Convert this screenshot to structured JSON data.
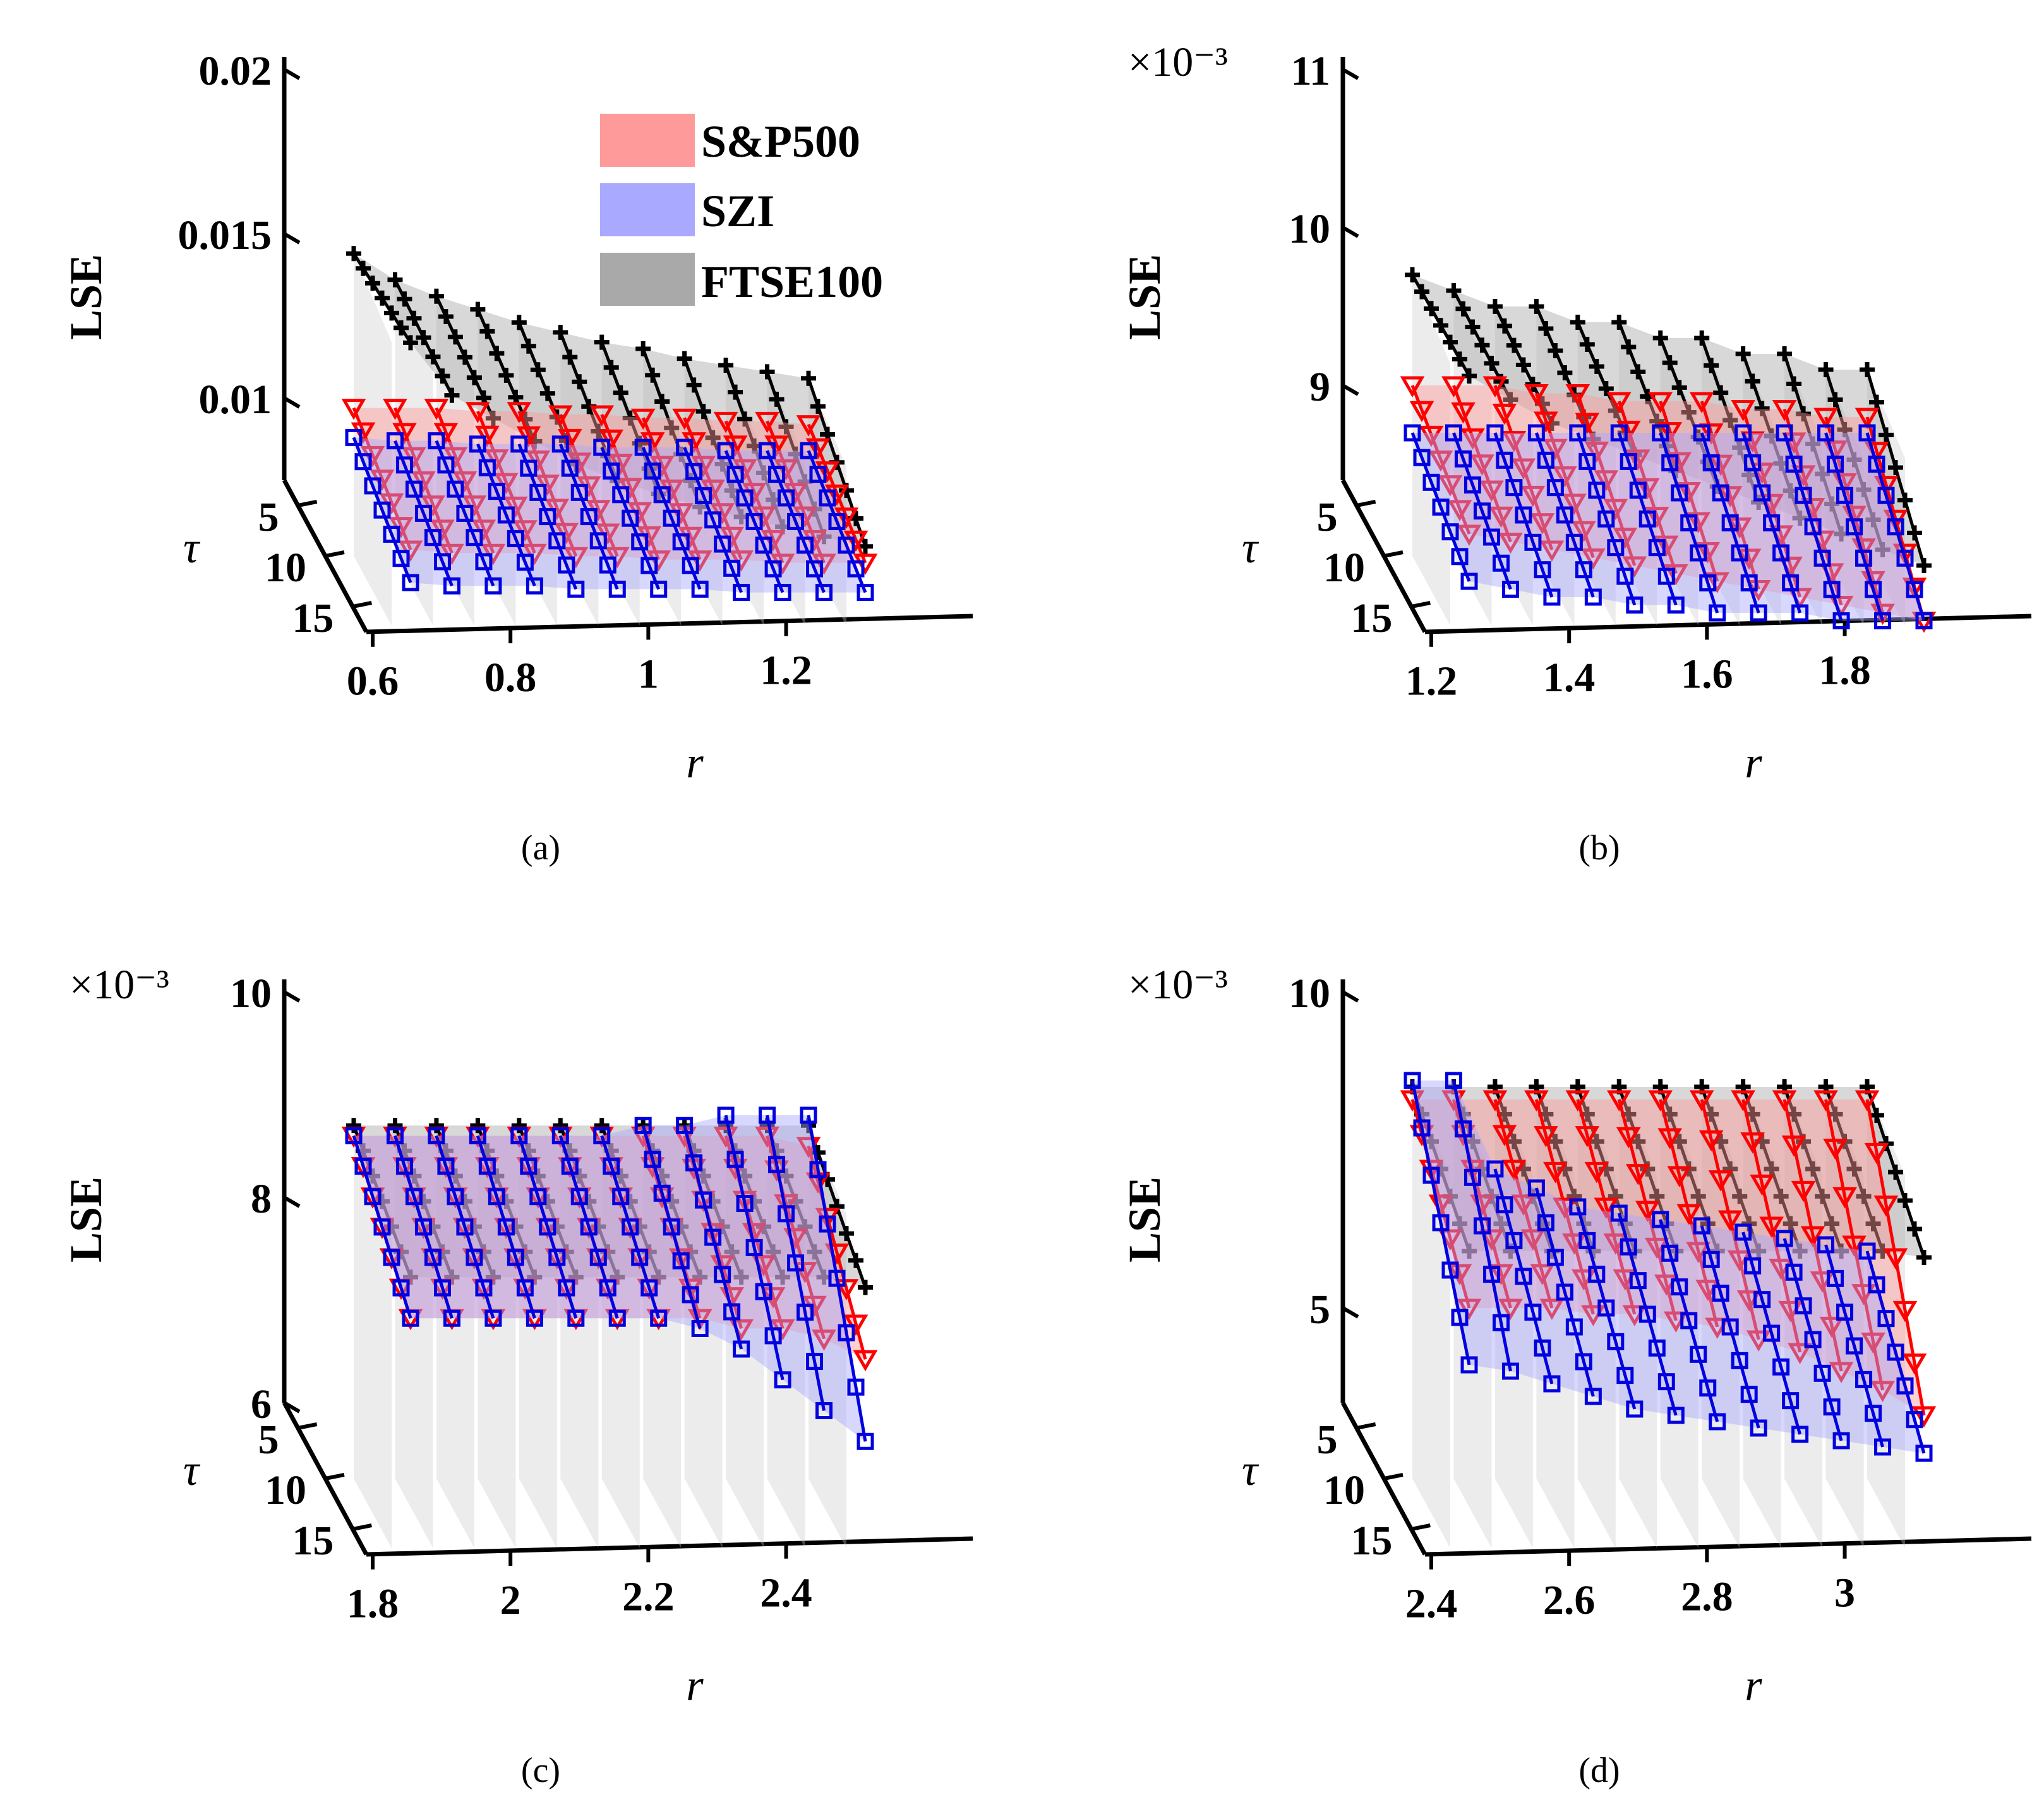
{
  "legend": [
    {
      "label": "S&P500",
      "color": "#ff9a9a"
    },
    {
      "label": "SZI",
      "color": "#a9a9ff"
    },
    {
      "label": "FTSE100",
      "color": "#a9a9a9"
    }
  ],
  "colors": {
    "sp500": "#ff0000",
    "szi": "#0000e0",
    "ftse": "#000000",
    "wall": "#c8c8c8",
    "axis": "#000000"
  },
  "chart_data": [
    {
      "type": "3d-line",
      "caption": "(a)",
      "zlabel": "LSE",
      "xlabel": "r",
      "ylabel": "τ",
      "exponent_label": "",
      "x_ticks": [
        "0.6",
        "0.8",
        "1",
        "1.2"
      ],
      "tau_ticks": [
        "5",
        "10",
        "15"
      ],
      "z_ticks": [
        "0.01",
        "0.015",
        "0.02"
      ],
      "x": [
        0.6,
        0.66,
        0.72,
        0.78,
        0.84,
        0.9,
        0.96,
        1.02,
        1.08,
        1.14,
        1.2,
        1.26
      ],
      "series": [
        {
          "name": "FTSE100",
          "tau_start": [
            0.0144,
            0.0136,
            0.0131,
            0.0127,
            0.0123,
            0.012,
            0.0117,
            0.0115,
            0.0112,
            0.011,
            0.0108,
            0.0106
          ],
          "tau_end": [
            0.0138,
            0.0122,
            0.0115,
            0.0108,
            0.0101,
            0.0096,
            0.0092,
            0.0088,
            0.0085,
            0.0082,
            0.0079,
            0.0076
          ]
        },
        {
          "name": "S&P500",
          "tau_start": [
            0.0097,
            0.0097,
            0.0097,
            0.0096,
            0.0096,
            0.0095,
            0.0095,
            0.0094,
            0.0094,
            0.0093,
            0.0093,
            0.0092
          ],
          "tau_end": [
            0.0075,
            0.0074,
            0.0074,
            0.0074,
            0.0073,
            0.0073,
            0.0072,
            0.0072,
            0.0072,
            0.0071,
            0.0071,
            0.0071
          ]
        },
        {
          "name": "SZI",
          "tau_start": [
            0.0088,
            0.0087,
            0.0087,
            0.0086,
            0.0086,
            0.0086,
            0.0085,
            0.0085,
            0.0085,
            0.0084,
            0.0084,
            0.0084
          ],
          "tau_end": [
            0.0065,
            0.0064,
            0.0064,
            0.0064,
            0.0063,
            0.0063,
            0.0063,
            0.0063,
            0.0062,
            0.0062,
            0.0062,
            0.0062
          ]
        }
      ]
    },
    {
      "type": "3d-line",
      "caption": "(b)",
      "zlabel": "LSE",
      "xlabel": "r",
      "ylabel": "τ",
      "exponent_label": "×10⁻³",
      "x_ticks": [
        "1.2",
        "1.4",
        "1.6",
        "1.8"
      ],
      "tau_ticks": [
        "5",
        "10",
        "15"
      ],
      "z_ticks": [
        "9",
        "10",
        "11"
      ],
      "x": [
        1.2,
        1.26,
        1.32,
        1.38,
        1.44,
        1.5,
        1.56,
        1.62,
        1.68,
        1.74,
        1.8,
        1.86
      ],
      "series": [
        {
          "name": "FTSE100",
          "tau_start": [
            9.7,
            9.6,
            9.5,
            9.5,
            9.4,
            9.4,
            9.3,
            9.3,
            9.2,
            9.2,
            9.1,
            9.1
          ],
          "tau_end": [
            9.5,
            9.35,
            9.2,
            9.1,
            9.0,
            8.9,
            8.8,
            8.7,
            8.6,
            8.5,
            8.4,
            8.3
          ]
        },
        {
          "name": "S&P500",
          "tau_start": [
            9.0,
            9.0,
            9.0,
            8.95,
            8.95,
            8.9,
            8.9,
            8.9,
            8.85,
            8.85,
            8.8,
            8.8
          ],
          "tau_end": [
            8.5,
            8.45,
            8.4,
            8.35,
            8.3,
            8.25,
            8.2,
            8.15,
            8.1,
            8.05,
            8.0,
            7.95
          ]
        },
        {
          "name": "SZI",
          "tau_start": [
            8.7,
            8.7,
            8.7,
            8.7,
            8.7,
            8.7,
            8.7,
            8.7,
            8.7,
            8.7,
            8.7,
            8.7
          ],
          "tau_end": [
            8.2,
            8.15,
            8.1,
            8.1,
            8.05,
            8.05,
            8.0,
            8.0,
            8.0,
            7.95,
            7.95,
            7.95
          ]
        }
      ]
    },
    {
      "type": "3d-line",
      "caption": "(c)",
      "zlabel": "LSE",
      "xlabel": "r",
      "ylabel": "τ",
      "exponent_label": "×10⁻³",
      "x_ticks": [
        "1.8",
        "2",
        "2.2",
        "2.4"
      ],
      "tau_ticks": [
        "5",
        "10",
        "15"
      ],
      "z_ticks": [
        "6",
        "8",
        "10"
      ],
      "x": [
        1.8,
        1.86,
        1.92,
        1.98,
        2.04,
        2.1,
        2.16,
        2.22,
        2.28,
        2.34,
        2.4,
        2.46
      ],
      "series": [
        {
          "name": "FTSE100",
          "tau_start": [
            8.7,
            8.7,
            8.7,
            8.7,
            8.7,
            8.7,
            8.7,
            8.7,
            8.7,
            8.7,
            8.7,
            8.7
          ],
          "tau_end": [
            7.9,
            7.9,
            7.9,
            7.9,
            7.9,
            7.9,
            7.9,
            7.9,
            7.9,
            7.9,
            7.9,
            7.8
          ]
        },
        {
          "name": "S&P500",
          "tau_start": [
            8.6,
            8.6,
            8.6,
            8.6,
            8.6,
            8.6,
            8.6,
            8.6,
            8.6,
            8.6,
            8.6,
            8.5
          ],
          "tau_end": [
            7.5,
            7.5,
            7.5,
            7.5,
            7.5,
            7.5,
            7.5,
            7.5,
            7.4,
            7.4,
            7.3,
            7.1
          ]
        },
        {
          "name": "SZI",
          "tau_start": [
            8.6,
            8.6,
            8.6,
            8.6,
            8.6,
            8.6,
            8.6,
            8.7,
            8.7,
            8.8,
            8.8,
            8.8
          ],
          "tau_end": [
            7.5,
            7.5,
            7.5,
            7.5,
            7.5,
            7.5,
            7.5,
            7.4,
            7.2,
            6.9,
            6.6,
            6.3
          ]
        }
      ]
    },
    {
      "type": "3d-line",
      "caption": "(d)",
      "zlabel": "LSE",
      "xlabel": "r",
      "ylabel": "τ",
      "exponent_label": "×10⁻³",
      "x_ticks": [
        "2.4",
        "2.6",
        "2.8",
        "3"
      ],
      "tau_ticks": [
        "5",
        "10",
        "15"
      ],
      "z_ticks": [
        "5",
        "10"
      ],
      "x": [
        2.4,
        2.46,
        2.52,
        2.58,
        2.64,
        2.7,
        2.76,
        2.82,
        2.88,
        2.94,
        3.0,
        3.06
      ],
      "series": [
        {
          "name": "FTSE100",
          "tau_start": [
            8.5,
            8.5,
            8.5,
            8.5,
            8.5,
            8.5,
            8.5,
            8.5,
            8.5,
            8.5,
            8.5,
            8.5
          ],
          "tau_end": [
            7.0,
            7.0,
            7.0,
            7.0,
            7.0,
            7.0,
            7.0,
            7.0,
            7.0,
            7.0,
            7.0,
            6.9
          ]
        },
        {
          "name": "S&P500",
          "tau_start": [
            8.3,
            8.3,
            8.3,
            8.3,
            8.3,
            8.3,
            8.3,
            8.3,
            8.3,
            8.3,
            8.3,
            8.3
          ],
          "tau_end": [
            6.1,
            6.1,
            6.1,
            6.0,
            6.0,
            5.9,
            5.8,
            5.6,
            5.4,
            5.1,
            4.8,
            4.4
          ]
        },
        {
          "name": "SZI",
          "tau_start": [
            8.6,
            8.6,
            7.2,
            6.9,
            6.6,
            6.5,
            6.4,
            6.3,
            6.2,
            6.1,
            6.0,
            5.9
          ],
          "tau_end": [
            5.2,
            5.1,
            4.9,
            4.7,
            4.5,
            4.4,
            4.3,
            4.2,
            4.1,
            4.0,
            3.9,
            3.8
          ]
        }
      ]
    }
  ]
}
